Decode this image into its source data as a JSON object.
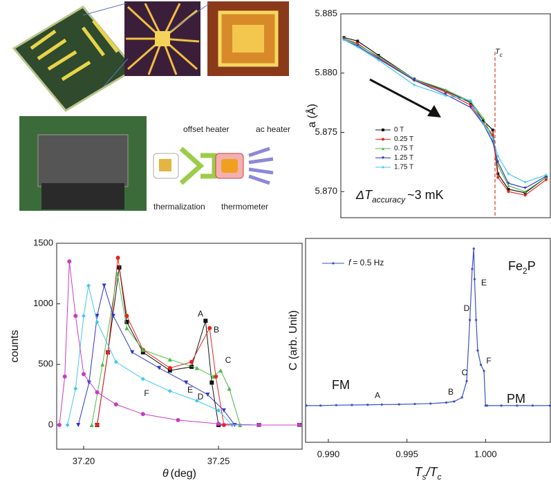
{
  "illustration": {
    "labels": [
      "offset heater",
      "ac heater",
      "thermalization",
      "thermometer"
    ]
  },
  "chart_data": [
    {
      "type": "line",
      "ylabel": "a (Å)",
      "ylim": [
        5.8678,
        5.885
      ],
      "yticks": [
        {
          "value": 5.87,
          "label": "5.870"
        },
        5.875,
        {
          "value": 5.88,
          "label": "5.880"
        },
        5.885
      ],
      "xlim": [
        0,
        100
      ],
      "vline": 73.6,
      "vline_color": "#e8432a",
      "tc_label": {
        "main": "T",
        "sub": "c"
      },
      "accuracy_label": {
        "main": "ΔT",
        "sub": "accuracy",
        "tail": "~3 mK"
      },
      "series": [
        {
          "name": "0 T",
          "color": "#111111",
          "marker": "square",
          "x": [
            1.5,
            8,
            18,
            35,
            50,
            62,
            68,
            72.5,
            75,
            80,
            88,
            98
          ],
          "values": [
            5.883,
            5.8827,
            5.8815,
            5.8795,
            5.8785,
            5.8775,
            5.876,
            5.8752,
            5.8715,
            5.8702,
            5.8699,
            5.8712
          ]
        },
        {
          "name": "0.25 T",
          "color": "#e8231b",
          "marker": "circle",
          "x": [
            1.5,
            8,
            18,
            35,
            50,
            62,
            68,
            72.5,
            75,
            80,
            88,
            98
          ],
          "values": [
            5.8829,
            5.8825,
            5.8813,
            5.8794,
            5.8784,
            5.8773,
            5.8758,
            5.8748,
            5.8712,
            5.87,
            5.8697,
            5.871
          ]
        },
        {
          "name": "0.75 T",
          "color": "#4fb848",
          "marker": "triangle",
          "x": [
            1.5,
            8,
            18,
            35,
            50,
            62,
            68,
            72.5,
            75,
            80,
            88,
            98
          ],
          "values": [
            5.8829,
            5.8824,
            5.8814,
            5.8795,
            5.8786,
            5.8776,
            5.8762,
            5.8745,
            5.8722,
            5.8705,
            5.87,
            5.8712
          ]
        },
        {
          "name": "1.25 T",
          "color": "#2b36c9",
          "marker": "tri-down",
          "x": [
            1.5,
            8,
            18,
            35,
            50,
            62,
            68,
            72.5,
            75,
            80,
            88,
            98
          ],
          "values": [
            5.8828,
            5.8823,
            5.8812,
            5.8794,
            5.8782,
            5.8771,
            5.8757,
            5.8742,
            5.8725,
            5.8707,
            5.8703,
            5.8713
          ]
        },
        {
          "name": "1.75 T",
          "color": "#41c8ef",
          "marker": "diamond",
          "x": [
            1.5,
            8,
            18,
            35,
            50,
            62,
            68,
            72.5,
            75,
            80,
            88,
            98
          ],
          "values": [
            5.8828,
            5.8822,
            5.8811,
            5.879,
            5.8781,
            5.8777,
            5.8757,
            5.8745,
            5.873,
            5.8715,
            5.8708,
            5.8714
          ]
        }
      ]
    },
    {
      "type": "line",
      "ylabel": "counts",
      "xlabel": {
        "main": "θ",
        "tail": "(deg)"
      },
      "ylim": [
        -200,
        1500
      ],
      "yticks": [
        0,
        500,
        1000,
        1500
      ],
      "xlim": [
        37.19,
        37.281
      ],
      "xticks": [
        {
          "value": 37.2,
          "label": "37.20"
        },
        37.25
      ],
      "series": [
        {
          "name": "A",
          "color": "#111111",
          "marker": "square",
          "x": [
            37.205,
            37.209,
            37.2132,
            37.216,
            37.222,
            37.232,
            37.24,
            37.2452,
            37.2475,
            37.25,
            37.265,
            37.28
          ],
          "values": [
            0,
            600,
            1300,
            850,
            600,
            450,
            480,
            860,
            350,
            0,
            0,
            0
          ]
        },
        {
          "name": "B",
          "color": "#e8231b",
          "marker": "circle",
          "x": [
            37.205,
            37.209,
            37.2127,
            37.216,
            37.222,
            37.232,
            37.24,
            37.2467,
            37.249,
            37.252,
            37.265,
            37.28
          ],
          "values": [
            0,
            600,
            1380,
            900,
            620,
            470,
            520,
            800,
            400,
            0,
            0,
            0
          ]
        },
        {
          "name": "C",
          "color": "#4fb848",
          "marker": "triangle",
          "x": [
            37.203,
            37.207,
            37.2125,
            37.216,
            37.222,
            37.232,
            37.242,
            37.248,
            37.2508,
            37.254,
            37.258,
            37.265,
            37.28
          ],
          "values": [
            0,
            500,
            1250,
            800,
            620,
            540,
            470,
            400,
            450,
            300,
            0,
            0,
            0
          ]
        },
        {
          "name": "D",
          "color": "#2b36c9",
          "marker": "tri-down",
          "x": [
            37.198,
            37.202,
            37.205,
            37.2076,
            37.211,
            37.218,
            37.228,
            37.238,
            37.246,
            37.252,
            37.256,
            37.265,
            37.28
          ],
          "values": [
            0,
            350,
            900,
            1150,
            900,
            600,
            470,
            350,
            250,
            120,
            0,
            0,
            0
          ]
        },
        {
          "name": "E",
          "color": "#41c8ef",
          "marker": "diamond",
          "x": [
            37.194,
            37.197,
            37.2,
            37.2018,
            37.205,
            37.212,
            37.222,
            37.232,
            37.242,
            37.25,
            37.255,
            37.265,
            37.28
          ],
          "values": [
            0,
            300,
            900,
            1150,
            850,
            520,
            380,
            280,
            200,
            120,
            0,
            0,
            0
          ]
        },
        {
          "name": "F",
          "color": "#c93bc4",
          "marker": "circle",
          "x": [
            37.191,
            37.193,
            37.1947,
            37.197,
            37.2,
            37.205,
            37.212,
            37.222,
            37.235,
            37.25,
            37.265,
            37.28
          ],
          "values": [
            0,
            400,
            1350,
            900,
            420,
            270,
            170,
            90,
            40,
            10,
            0,
            0
          ]
        }
      ]
    },
    {
      "type": "line",
      "ylabel": "C (arb. Unit)",
      "xlabel": {
        "main": "T",
        "sub": "s",
        "mid": "/T",
        "sub2": "c"
      },
      "ylim": [
        0,
        100
      ],
      "xlim": [
        0.98855,
        1.00412
      ],
      "xticks": [
        {
          "value": 0.99,
          "label": "0.990"
        },
        0.995,
        {
          "value": 1,
          "label": "1.000"
        }
      ],
      "legend": {
        "italic": "f",
        "text": "= 0.5 Hz"
      },
      "phase_labels": [
        "FM",
        "PM"
      ],
      "material": {
        "main": "Fe",
        "sub": "2",
        "tail": "P"
      },
      "point_labels": [
        "A",
        "B",
        "C",
        "D",
        "E",
        "F"
      ],
      "series": [
        {
          "color": "#3a4fc4",
          "marker": "dot",
          "x": [
            0.9886,
            0.9895,
            0.9905,
            0.9915,
            0.9925,
            0.9934,
            0.9945,
            0.9955,
            0.9965,
            0.9975,
            0.998,
            0.9985,
            0.9988,
            0.999,
            0.99915,
            0.99925,
            0.9993,
            0.9994,
            0.9995,
            0.9997,
            0.9999,
            1.0,
            1.0001,
            1.001,
            1.002,
            1.003,
            1.0041
          ],
          "values": [
            18,
            18,
            18.2,
            18.3,
            18.4,
            18.5,
            18.6,
            18.8,
            19,
            19.5,
            20,
            22,
            30,
            60,
            85,
            95,
            80,
            60,
            45,
            38,
            35,
            18,
            18,
            18,
            18,
            18,
            18
          ]
        }
      ]
    }
  ]
}
